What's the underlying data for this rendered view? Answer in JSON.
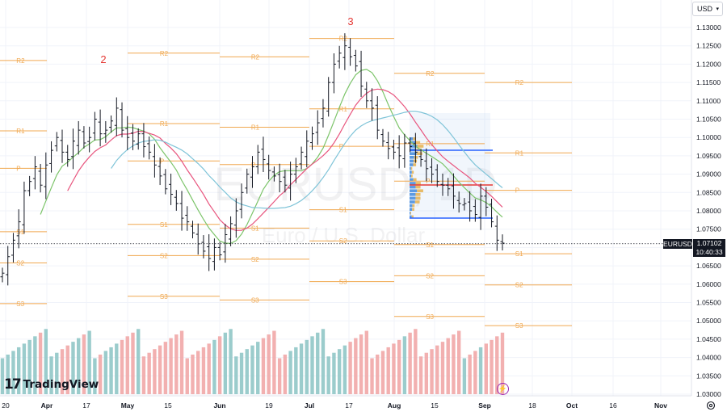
{
  "currency_button": {
    "label": "USD"
  },
  "watermark": {
    "symbol": "EURUSD, 1D",
    "description": "Euro / U.S. Dollar"
  },
  "price_scale": {
    "labels": [
      "1.13000",
      "1.12500",
      "1.12000",
      "1.11500",
      "1.11000",
      "1.10500",
      "1.10000",
      "1.09500",
      "1.09000",
      "1.08500",
      "1.08000",
      "1.07500",
      "1.07000",
      "1.06500",
      "1.06000",
      "1.05500",
      "1.05000",
      "1.04500",
      "1.04000",
      "1.03500",
      "1.03000"
    ]
  },
  "current_price": {
    "symbol": "EURUSD",
    "price": "1.07102",
    "countdown": "10:40:33",
    "value": 1.07102
  },
  "time_axis": {
    "labels": [
      "20",
      "Apr",
      "17",
      "May",
      "15",
      "Jun",
      "19",
      "Jul",
      "17",
      "Aug",
      "15",
      "Sep",
      "18",
      "Oct",
      "16",
      "Nov"
    ]
  },
  "wave_labels": [
    {
      "text": "2"
    },
    {
      "text": "3"
    }
  ],
  "pivot_labels": [
    "R2",
    "R1",
    "P",
    "S1",
    "S2",
    "S3",
    "R3"
  ],
  "branding": {
    "logo_mark": "17",
    "logo_text": "TradingView"
  },
  "colors": {
    "candle": "#131722",
    "pivot_level": "#f0a850",
    "wave_label": "#e53935",
    "ma_fast": "#7cc46a",
    "ma_mid": "#e8557e",
    "ma_slow": "#7fc4d8",
    "volume_up": "#89c3c3",
    "volume_down": "#f0a2a2",
    "vp_blue": "#4a8fe0",
    "vp_orange": "#f5b84a",
    "box_blue": "#2962ff",
    "poc_red": "#e53935"
  },
  "chart_data": {
    "type": "candlestick",
    "symbol": "EURUSD",
    "timeframe": "1D",
    "y_axis_range": [
      1.03,
      1.132
    ],
    "x_axis_ticks": [
      "20",
      "Apr",
      "17",
      "May",
      "15",
      "Jun",
      "19",
      "Jul",
      "17",
      "Aug",
      "15",
      "Sep",
      "18",
      "Oct",
      "16",
      "Nov"
    ],
    "close_series": [
      1.063,
      1.0675,
      1.072,
      1.077,
      1.0855,
      1.088,
      1.092,
      1.087,
      1.0925,
      1.0965,
      1.1,
      1.096,
      1.094,
      1.099,
      1.102,
      1.0985,
      1.1,
      1.105,
      1.101,
      1.102,
      1.1045,
      1.108,
      1.102,
      1.1,
      1.099,
      1.101,
      1.0975,
      1.096,
      1.0925,
      1.0895,
      1.086,
      1.0845,
      1.082,
      1.078,
      1.077,
      1.074,
      1.071,
      1.069,
      1.067,
      1.07,
      1.068,
      1.0735,
      1.0765,
      1.08,
      1.085,
      1.09,
      1.092,
      1.096,
      1.094,
      1.091,
      1.0895,
      1.088,
      1.087,
      1.09,
      1.092,
      1.096,
      1.099,
      1.101,
      1.104,
      1.108,
      1.115,
      1.12,
      1.123,
      1.125,
      1.122,
      1.1195,
      1.114,
      1.11,
      1.108,
      1.102,
      1.099,
      1.097,
      1.096,
      1.095,
      1.0985,
      1.0975,
      1.096,
      1.094,
      1.0915,
      1.09,
      1.088,
      1.087,
      1.086,
      1.084,
      1.082,
      1.082,
      1.08,
      1.079,
      1.084,
      1.081,
      1.077,
      1.072,
      1.0712
    ],
    "pivot_levels": [
      {
        "label": "R2",
        "value": 1.121
      },
      {
        "label": "R1",
        "value": 1.1018
      },
      {
        "label": "P",
        "value": 1.0916
      },
      {
        "label": "S1",
        "value": 1.0743
      },
      {
        "label": "S2",
        "value": 1.0658
      },
      {
        "label": "S3",
        "value": 1.0547
      }
    ],
    "volume_visible": true,
    "moving_averages": 3
  }
}
